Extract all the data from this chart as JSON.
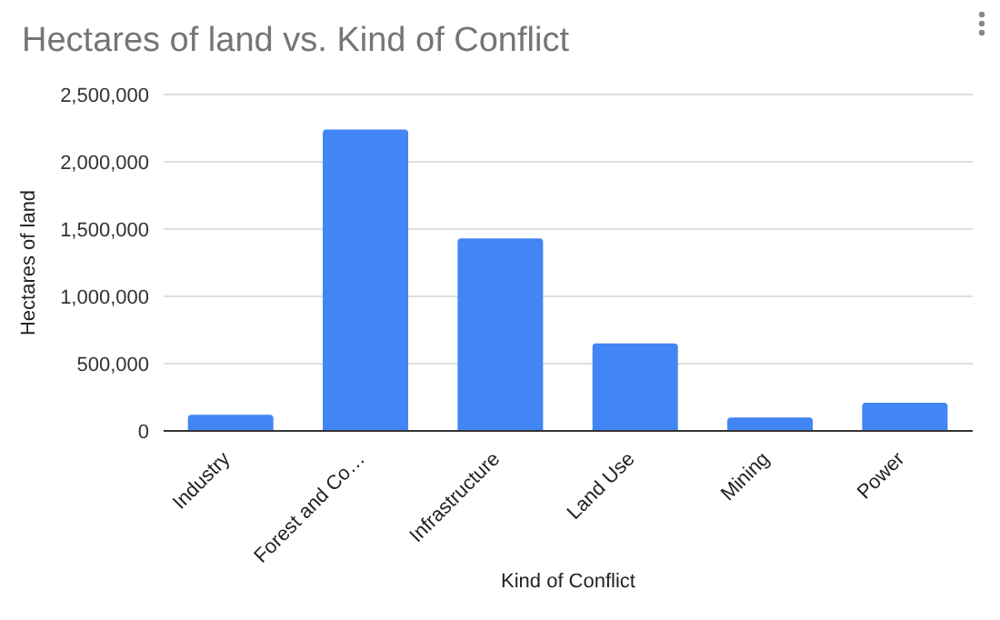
{
  "chart_data": {
    "type": "bar",
    "title": "Hectares of land vs. Kind of Conflict",
    "xlabel": "Kind of Conflict",
    "ylabel": "Hectares of land",
    "categories": [
      "Industry",
      "Forest and Co…",
      "Infrastructure",
      "Land Use",
      "Mining",
      "Power"
    ],
    "values": [
      120000,
      2240000,
      1430000,
      650000,
      100000,
      210000
    ],
    "color": "#4285f4",
    "ylim": [
      0,
      2500000
    ],
    "yticks": [
      0,
      {
        "value": 500000,
        "label": "500,000"
      },
      {
        "value": 1000000,
        "label": "1,000,000"
      },
      {
        "value": 1500000,
        "label": "1,500,000"
      },
      {
        "value": 2000000,
        "label": "2,000,000"
      },
      {
        "value": 2500000,
        "label": "2,500,000"
      }
    ],
    "grid": "y"
  }
}
